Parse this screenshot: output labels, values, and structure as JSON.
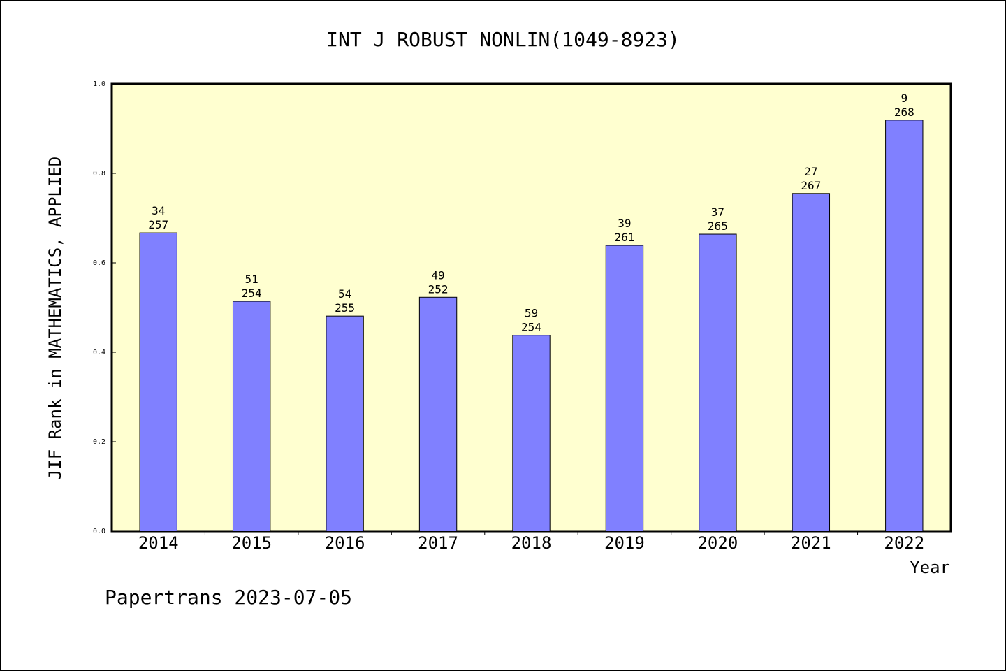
{
  "chart_data": {
    "type": "bar",
    "title": "INT J ROBUST NONLIN(1049-8923)",
    "xlabel": "Year",
    "ylabel": "JIF Rank in MATHEMATICS, APPLIED",
    "ylim": [
      0,
      1.0
    ],
    "yticks": [
      "0.0",
      "0.2",
      "0.4",
      "0.6",
      "0.8",
      "1.0"
    ],
    "categories": [
      "2014",
      "2015",
      "2016",
      "2017",
      "2018",
      "2019",
      "2020",
      "2021",
      "2022"
    ],
    "values": [
      0.667,
      0.514,
      0.481,
      0.523,
      0.438,
      0.639,
      0.664,
      0.755,
      0.919
    ],
    "ranks": [
      "34",
      "51",
      "54",
      "49",
      "59",
      "39",
      "37",
      "27",
      "9"
    ],
    "totals": [
      "257",
      "254",
      "255",
      "252",
      "254",
      "261",
      "265",
      "267",
      "268"
    ],
    "grid": false,
    "colors": {
      "bar": "#8080ff",
      "plot_bg": "#ffffd0"
    }
  },
  "footer": "Papertrans 2023-07-05"
}
